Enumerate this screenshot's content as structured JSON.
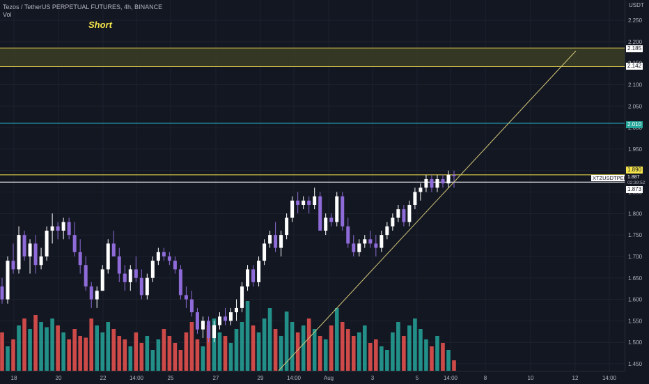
{
  "legend": {
    "title": "Tezos / TetherUS PERPETUAL FUTURES, 4h, BINANCE",
    "indicator": "Vol"
  },
  "annotation": {
    "text": "Short"
  },
  "price_axis": {
    "currency": "USDT",
    "ticks": [
      "2.250",
      "2.200",
      "2.150",
      "2.100",
      "2.050",
      "2.000",
      "1.950",
      "1.900",
      "1.850",
      "1.800",
      "1.750",
      "1.700",
      "1.650",
      "1.600",
      "1.550",
      "1.500",
      "1.450"
    ]
  },
  "time_axis": {
    "labels": [
      "18",
      "20",
      "22",
      "14:00",
      "25",
      "27",
      "29",
      "14:00",
      "Aug",
      "3",
      "5",
      "14:00",
      "8",
      "10",
      "12",
      "14:00"
    ]
  },
  "price_tags": {
    "zone_top": "2.185",
    "zone_bottom": "2.142",
    "level_cyan": "2.010",
    "level_yellow": "1.890",
    "current_price": "1.887",
    "countdown": "02:39:52",
    "level_white": "1.873",
    "symbol": "XTZUSDTPERP"
  },
  "colors": {
    "background": "#131722",
    "up_candle": "#ffffff",
    "down_candle": "#8e6bd8",
    "vol_up": "#26a69a",
    "vol_down": "#ef5350",
    "zone_fill": "#3a3d25",
    "zone_border": "#c9b84a",
    "cyan_line": "#26c6da",
    "yellow_line": "#f5e54a",
    "trendline": "#d6c97a"
  },
  "chart_data": {
    "type": "candlestick",
    "symbol": "XTZUSDTPERP",
    "interval": "4h",
    "exchange": "BINANCE",
    "price_range": [
      1.44,
      2.27
    ],
    "horizontal_levels": [
      2.185,
      2.142,
      2.01,
      1.89,
      1.873
    ],
    "last_price": 1.887,
    "ohlc": [
      [
        1.63,
        1.65,
        1.59,
        1.6
      ],
      [
        1.6,
        1.7,
        1.59,
        1.69
      ],
      [
        1.69,
        1.73,
        1.66,
        1.67
      ],
      [
        1.67,
        1.77,
        1.66,
        1.75
      ],
      [
        1.75,
        1.76,
        1.69,
        1.7
      ],
      [
        1.7,
        1.74,
        1.66,
        1.73
      ],
      [
        1.73,
        1.75,
        1.66,
        1.68
      ],
      [
        1.68,
        1.72,
        1.67,
        1.7
      ],
      [
        1.7,
        1.77,
        1.69,
        1.76
      ],
      [
        1.76,
        1.8,
        1.73,
        1.77
      ],
      [
        1.77,
        1.78,
        1.74,
        1.76
      ],
      [
        1.76,
        1.79,
        1.74,
        1.78
      ],
      [
        1.78,
        1.79,
        1.74,
        1.75
      ],
      [
        1.75,
        1.78,
        1.7,
        1.71
      ],
      [
        1.71,
        1.74,
        1.66,
        1.68
      ],
      [
        1.68,
        1.7,
        1.62,
        1.63
      ],
      [
        1.63,
        1.64,
        1.58,
        1.6
      ],
      [
        1.6,
        1.63,
        1.58,
        1.62
      ],
      [
        1.62,
        1.68,
        1.62,
        1.67
      ],
      [
        1.67,
        1.74,
        1.66,
        1.73
      ],
      [
        1.73,
        1.76,
        1.7,
        1.7
      ],
      [
        1.7,
        1.72,
        1.64,
        1.66
      ],
      [
        1.66,
        1.68,
        1.62,
        1.64
      ],
      [
        1.64,
        1.68,
        1.62,
        1.67
      ],
      [
        1.67,
        1.7,
        1.64,
        1.65
      ],
      [
        1.65,
        1.67,
        1.6,
        1.61
      ],
      [
        1.61,
        1.66,
        1.6,
        1.65
      ],
      [
        1.65,
        1.7,
        1.64,
        1.69
      ],
      [
        1.69,
        1.72,
        1.68,
        1.71
      ],
      [
        1.71,
        1.72,
        1.69,
        1.7
      ],
      [
        1.7,
        1.71,
        1.68,
        1.69
      ],
      [
        1.69,
        1.7,
        1.66,
        1.67
      ],
      [
        1.67,
        1.68,
        1.6,
        1.61
      ],
      [
        1.61,
        1.63,
        1.58,
        1.6
      ],
      [
        1.6,
        1.62,
        1.56,
        1.57
      ],
      [
        1.57,
        1.58,
        1.52,
        1.53
      ],
      [
        1.53,
        1.56,
        1.51,
        1.55
      ],
      [
        1.55,
        1.56,
        1.5,
        1.51
      ],
      [
        1.51,
        1.55,
        1.5,
        1.54
      ],
      [
        1.54,
        1.57,
        1.53,
        1.56
      ],
      [
        1.56,
        1.58,
        1.54,
        1.55
      ],
      [
        1.55,
        1.58,
        1.54,
        1.57
      ],
      [
        1.57,
        1.6,
        1.55,
        1.58
      ],
      [
        1.58,
        1.64,
        1.57,
        1.63
      ],
      [
        1.63,
        1.68,
        1.62,
        1.67
      ],
      [
        1.67,
        1.68,
        1.63,
        1.64
      ],
      [
        1.64,
        1.7,
        1.63,
        1.69
      ],
      [
        1.69,
        1.74,
        1.68,
        1.73
      ],
      [
        1.73,
        1.76,
        1.72,
        1.75
      ],
      [
        1.75,
        1.78,
        1.71,
        1.72
      ],
      [
        1.72,
        1.76,
        1.7,
        1.75
      ],
      [
        1.75,
        1.8,
        1.74,
        1.79
      ],
      [
        1.79,
        1.84,
        1.78,
        1.83
      ],
      [
        1.83,
        1.85,
        1.8,
        1.82
      ],
      [
        1.82,
        1.84,
        1.81,
        1.83
      ],
      [
        1.83,
        1.84,
        1.8,
        1.82
      ],
      [
        1.82,
        1.86,
        1.81,
        1.84
      ],
      [
        1.84,
        1.85,
        1.76,
        1.76
      ],
      [
        1.76,
        1.8,
        1.75,
        1.79
      ],
      [
        1.79,
        1.8,
        1.77,
        1.78
      ],
      [
        1.78,
        1.85,
        1.77,
        1.84
      ],
      [
        1.84,
        1.85,
        1.76,
        1.77
      ],
      [
        1.77,
        1.79,
        1.72,
        1.73
      ],
      [
        1.73,
        1.75,
        1.7,
        1.71
      ],
      [
        1.71,
        1.74,
        1.7,
        1.73
      ],
      [
        1.73,
        1.75,
        1.72,
        1.74
      ],
      [
        1.74,
        1.76,
        1.72,
        1.73
      ],
      [
        1.73,
        1.75,
        1.7,
        1.72
      ],
      [
        1.72,
        1.76,
        1.71,
        1.75
      ],
      [
        1.75,
        1.78,
        1.74,
        1.77
      ],
      [
        1.77,
        1.8,
        1.76,
        1.79
      ],
      [
        1.79,
        1.82,
        1.78,
        1.81
      ],
      [
        1.81,
        1.82,
        1.77,
        1.78
      ],
      [
        1.78,
        1.83,
        1.77,
        1.82
      ],
      [
        1.82,
        1.86,
        1.81,
        1.85
      ],
      [
        1.85,
        1.87,
        1.83,
        1.86
      ],
      [
        1.86,
        1.89,
        1.85,
        1.88
      ],
      [
        1.88,
        1.89,
        1.85,
        1.86
      ],
      [
        1.86,
        1.89,
        1.85,
        1.88
      ],
      [
        1.88,
        1.89,
        1.86,
        1.87
      ],
      [
        1.87,
        1.9,
        1.86,
        1.89
      ],
      [
        1.89,
        1.9,
        1.86,
        1.887
      ]
    ],
    "volume": [
      22,
      14,
      18,
      26,
      30,
      24,
      32,
      28,
      25,
      30,
      26,
      22,
      18,
      24,
      20,
      19,
      30,
      26,
      22,
      28,
      24,
      20,
      18,
      14,
      22,
      16,
      20,
      12,
      18,
      24,
      20,
      16,
      12,
      22,
      28,
      18,
      14,
      26,
      30,
      22,
      20,
      16,
      24,
      28,
      40,
      26,
      22,
      30,
      36,
      24,
      20,
      34,
      28,
      22,
      26,
      30,
      24,
      20,
      18,
      26,
      36,
      28,
      24,
      20,
      22,
      26,
      16,
      18,
      14,
      12,
      22,
      28,
      20,
      26,
      30,
      24,
      18,
      14,
      20,
      16,
      12,
      6
    ],
    "volume_up": [
      0,
      1,
      0,
      1,
      0,
      1,
      0,
      1,
      1,
      1,
      0,
      1,
      0,
      0,
      0,
      0,
      0,
      1,
      1,
      1,
      0,
      0,
      0,
      1,
      0,
      0,
      1,
      1,
      1,
      0,
      0,
      0,
      0,
      0,
      0,
      0,
      1,
      0,
      1,
      1,
      0,
      1,
      1,
      1,
      1,
      0,
      1,
      1,
      1,
      0,
      1,
      1,
      1,
      0,
      1,
      0,
      1,
      0,
      1,
      0,
      1,
      0,
      0,
      0,
      1,
      1,
      0,
      0,
      1,
      1,
      1,
      1,
      0,
      1,
      1,
      1,
      1,
      0,
      1,
      0,
      1,
      0
    ]
  }
}
